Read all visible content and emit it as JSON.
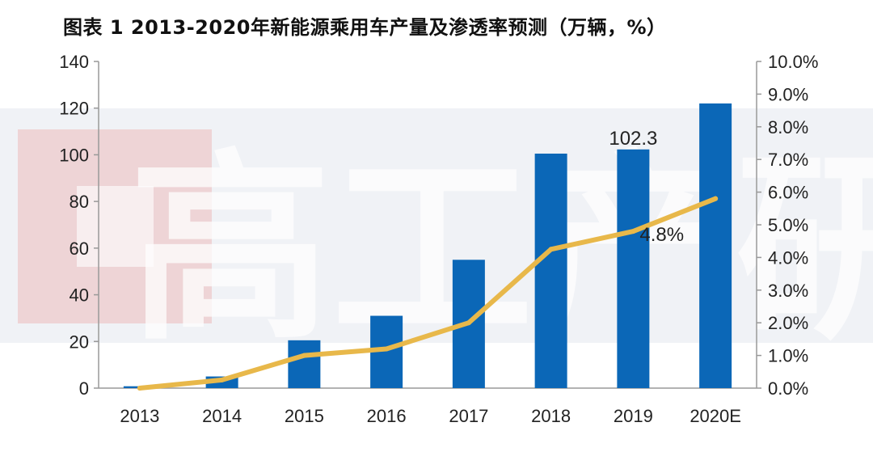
{
  "title": "图表 1   2013-2020年新能源乘用车产量及渗透率预测（万辆，%）",
  "watermark": "高工产研",
  "chart_data": {
    "type": "bar",
    "categories": [
      "2013",
      "2014",
      "2015",
      "2016",
      "2017",
      "2018",
      "2019",
      "2020E"
    ],
    "series": [
      {
        "type": "bar",
        "axis": "left",
        "color": "#0B67B7",
        "values": [
          0.8,
          5.0,
          20.5,
          31.0,
          55.0,
          100.5,
          102.3,
          122.0
        ]
      },
      {
        "type": "line",
        "axis": "right",
        "color": "#E8B84A",
        "values": [
          0.0,
          0.25,
          1.0,
          1.2,
          2.0,
          4.25,
          4.8,
          5.8
        ]
      }
    ],
    "ylim_left": [
      0,
      140
    ],
    "yticks_left": [
      "0",
      "20",
      "40",
      "60",
      "80",
      "100",
      "120",
      "140"
    ],
    "ylim_right": [
      0,
      10
    ],
    "yticks_right": [
      "0.0%",
      "1.0%",
      "2.0%",
      "3.0%",
      "4.0%",
      "5.0%",
      "6.0%",
      "7.0%",
      "8.0%",
      "9.0%",
      "10.0%"
    ],
    "annotations": [
      {
        "series": 0,
        "index": 6,
        "text": "102.3"
      },
      {
        "series": 1,
        "index": 6,
        "text": "4.8%"
      }
    ],
    "grid": false,
    "legend": "none"
  }
}
